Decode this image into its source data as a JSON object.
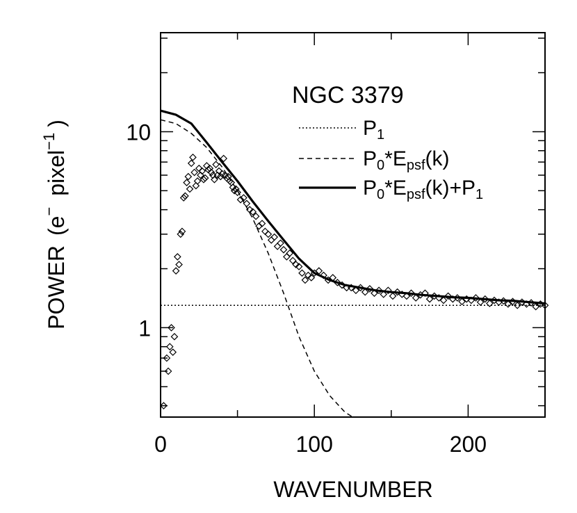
{
  "chart_data": {
    "type": "scatter",
    "title": "NGC 3379",
    "xlabel": "WAVENUMBER",
    "ylabel": {
      "power": "POWER",
      "unit_open": "(e",
      "unit_open_sup": "−",
      "unit_mid": "pixel",
      "unit_mid_sup": "−1",
      "unit_close": ")"
    },
    "xscale": "linear",
    "yscale": "log",
    "xlim": [
      0,
      250
    ],
    "ylim": [
      0.35,
      32
    ],
    "xticks": [
      0,
      100,
      200
    ],
    "xtick_labels": [
      "0",
      "100",
      "200"
    ],
    "yticks": [
      1,
      10
    ],
    "ytick_labels": [
      "1",
      "10"
    ],
    "legend": [
      {
        "style": "dotted",
        "label_main": "P",
        "label_sub": "1"
      },
      {
        "style": "dashed",
        "label_parts": [
          "P",
          "0",
          "*E",
          "psf",
          "(k)"
        ]
      },
      {
        "style": "solid",
        "label_parts": [
          "P",
          "0",
          "*E",
          "psf",
          "(k)+P",
          "1"
        ]
      }
    ],
    "series": [
      {
        "name": "P1",
        "style": "dotted",
        "x": [
          0,
          250
        ],
        "y": [
          1.3,
          1.3
        ]
      },
      {
        "name": "P0*Epsf(k)",
        "style": "dashed",
        "x": [
          0,
          10,
          20,
          30,
          40,
          50,
          60,
          70,
          80,
          90,
          100,
          110,
          120,
          125
        ],
        "y": [
          11.5,
          11.0,
          9.8,
          8.3,
          6.6,
          5.0,
          3.6,
          2.4,
          1.5,
          0.9,
          0.6,
          0.45,
          0.37,
          0.35
        ]
      },
      {
        "name": "P0*Epsf(k)+P1",
        "style": "solid",
        "x": [
          0,
          10,
          20,
          30,
          40,
          50,
          60,
          70,
          80,
          90,
          100,
          110,
          120,
          130,
          140,
          150,
          160,
          170,
          180,
          190,
          200,
          210,
          220,
          230,
          240,
          250
        ],
        "y": [
          12.8,
          12.2,
          11.0,
          8.8,
          7.0,
          5.6,
          4.4,
          3.5,
          2.8,
          2.25,
          1.9,
          1.75,
          1.65,
          1.6,
          1.55,
          1.52,
          1.5,
          1.47,
          1.45,
          1.43,
          1.42,
          1.4,
          1.38,
          1.37,
          1.35,
          1.33
        ]
      },
      {
        "name": "data",
        "style": "diamond",
        "x": [
          2,
          4,
          5,
          6,
          7,
          8,
          9,
          10,
          11,
          12,
          13,
          14,
          15,
          16,
          17,
          18,
          19,
          20,
          21,
          22,
          23,
          24,
          25,
          26,
          27,
          28,
          29,
          30,
          31,
          32,
          33,
          34,
          35,
          36,
          37,
          38,
          39,
          40,
          41,
          42,
          43,
          44,
          45,
          46,
          47,
          48,
          49,
          50,
          52,
          54,
          56,
          58,
          60,
          62,
          64,
          66,
          68,
          70,
          72,
          74,
          76,
          78,
          80,
          82,
          84,
          86,
          88,
          90,
          92,
          94,
          96,
          98,
          100,
          103,
          106,
          109,
          112,
          115,
          118,
          121,
          124,
          127,
          130,
          133,
          136,
          139,
          142,
          145,
          148,
          151,
          154,
          157,
          160,
          163,
          166,
          169,
          172,
          175,
          178,
          181,
          184,
          187,
          190,
          193,
          196,
          199,
          202,
          205,
          208,
          211,
          214,
          217,
          220,
          223,
          226,
          229,
          232,
          235,
          238,
          241,
          244,
          247,
          250
        ],
        "y": [
          0.4,
          0.7,
          0.6,
          0.8,
          1.0,
          0.75,
          0.9,
          1.95,
          2.3,
          2.1,
          3.0,
          3.1,
          4.6,
          4.7,
          5.5,
          5.9,
          5.1,
          6.9,
          7.4,
          6.2,
          5.3,
          5.6,
          6.5,
          6.0,
          6.3,
          5.7,
          5.8,
          6.7,
          6.4,
          6.5,
          6.2,
          6.0,
          5.7,
          6.8,
          6.0,
          6.3,
          5.9,
          6.1,
          7.3,
          6.0,
          5.8,
          5.9,
          5.6,
          5.5,
          5.2,
          5.0,
          5.1,
          4.9,
          4.5,
          4.6,
          4.3,
          4.0,
          3.9,
          3.7,
          3.3,
          3.4,
          3.1,
          3.0,
          2.8,
          2.9,
          2.6,
          2.7,
          2.5,
          2.3,
          2.4,
          2.2,
          2.1,
          2.05,
          1.9,
          1.75,
          1.85,
          1.8,
          1.9,
          1.95,
          1.85,
          1.75,
          1.8,
          1.7,
          1.65,
          1.6,
          1.6,
          1.55,
          1.6,
          1.52,
          1.58,
          1.5,
          1.55,
          1.48,
          1.55,
          1.45,
          1.52,
          1.48,
          1.45,
          1.5,
          1.42,
          1.47,
          1.5,
          1.4,
          1.45,
          1.42,
          1.38,
          1.45,
          1.4,
          1.42,
          1.36,
          1.4,
          1.38,
          1.42,
          1.35,
          1.4,
          1.33,
          1.38,
          1.35,
          1.37,
          1.32,
          1.36,
          1.3,
          1.35,
          1.32,
          1.34,
          1.28,
          1.32,
          1.3
        ]
      }
    ]
  }
}
